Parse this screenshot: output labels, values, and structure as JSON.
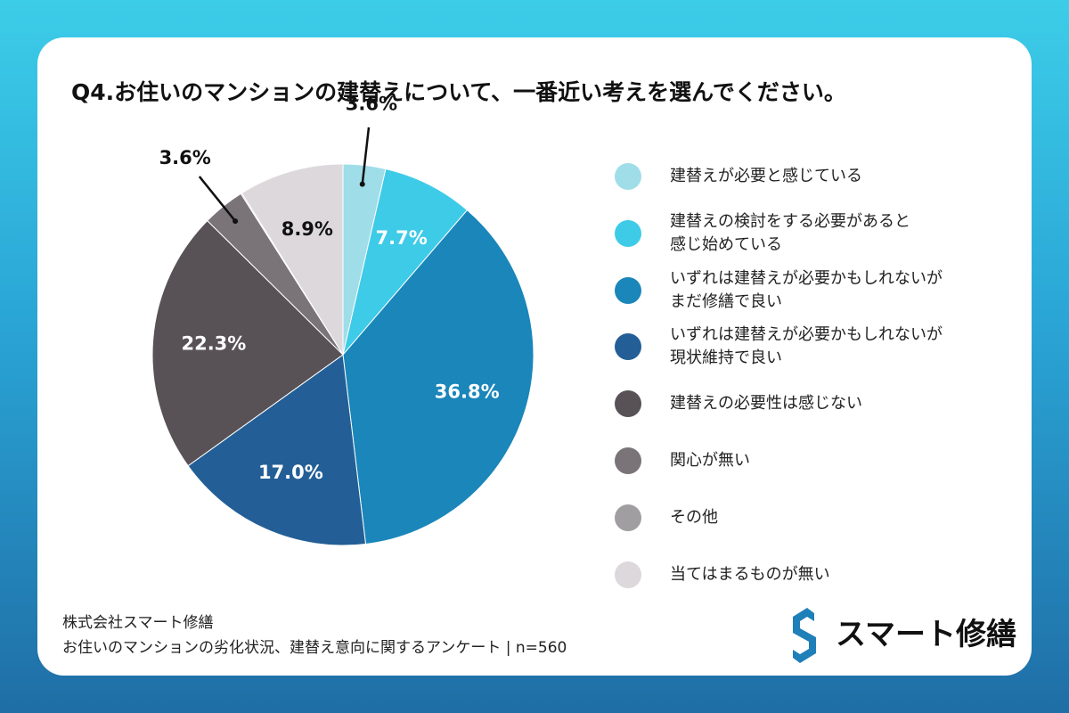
{
  "chart_data": {
    "type": "pie",
    "title": "Q4.お住いのマンションの建替えについて、一番近い考えを選んでください。",
    "categories": [
      "建替えが必要と感じている",
      "建替えの検討をする必要があると\n感じ始めている",
      "いずれは建替えが必要かもしれないが\nまだ修繕で良い",
      "いずれは建替えが必要かもしれないが\n現状維持で良い",
      "建替えの必要性は感じない",
      "関心が無い",
      "その他",
      "当てはまるものが無い"
    ],
    "values": [
      3.6,
      7.7,
      36.8,
      17.0,
      22.3,
      3.6,
      0.1,
      8.9
    ],
    "value_labels": [
      "3.6%",
      "7.7%",
      "36.8%",
      "17.0%",
      "22.3%",
      "3.6%",
      null,
      "8.9%"
    ],
    "colors": [
      "#9fdde9",
      "#3ecbe8",
      "#1a86ba",
      "#235f96",
      "#585256",
      "#7a7478",
      "#a09ea0",
      "#dcd8dc"
    ],
    "label_colors": [
      "#111",
      "#fff",
      "#fff",
      "#fff",
      "#fff",
      "#111",
      null,
      "#111"
    ]
  },
  "source": "株式会社スマート修繕",
  "subtitle": "お住いのマンションの劣化状況、建替え意向に関するアンケート | n=560",
  "logo": "スマート修繕"
}
